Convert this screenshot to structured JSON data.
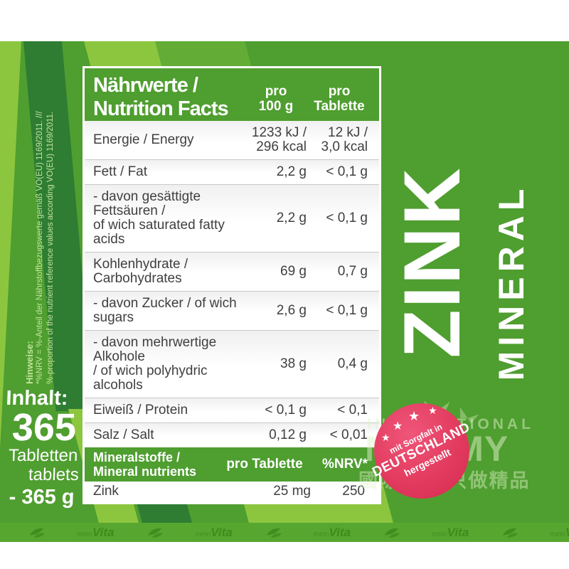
{
  "table": {
    "title": [
      "Nährwerte /",
      "Nutrition Facts"
    ],
    "col1_header": [
      "pro",
      "100 g"
    ],
    "col2_header": [
      "pro",
      "Tablette"
    ],
    "rows": [
      {
        "name": [
          "Energie / Energy"
        ],
        "per_100g": [
          "1233 kJ /",
          "296 kcal"
        ],
        "per_tablette": [
          "12 kJ /",
          "3,0 kcal"
        ]
      },
      {
        "name": [
          "Fett / Fat"
        ],
        "per_100g": [
          "2,2 g"
        ],
        "per_tablette": [
          "< 0,1 g"
        ]
      },
      {
        "name": [
          "- davon gesättigte Fettsäuren /",
          "of wich saturated fatty acids"
        ],
        "per_100g": [
          "2,2 g"
        ],
        "per_tablette": [
          "< 0,1 g"
        ]
      },
      {
        "name": [
          "Kohlenhydrate / Carbohydrates"
        ],
        "per_100g": [
          "69 g"
        ],
        "per_tablette": [
          "0,7 g"
        ]
      },
      {
        "name": [
          "- davon Zucker / of wich sugars"
        ],
        "per_100g": [
          "2,6 g"
        ],
        "per_tablette": [
          "< 0,1 g"
        ]
      },
      {
        "name": [
          "- davon mehrwertige Alkohole",
          "/ of wich polyhydric alcohols"
        ],
        "per_100g": [
          "38 g"
        ],
        "per_tablette": [
          "0,4 g"
        ]
      },
      {
        "name": [
          "Eiweiß / Protein"
        ],
        "per_100g": [
          "< 0,1 g"
        ],
        "per_tablette": [
          "< 0,1"
        ]
      },
      {
        "name": [
          "Salz / Salt"
        ],
        "per_100g": [
          "0,12 g"
        ],
        "per_tablette": [
          "< 0,01"
        ]
      }
    ],
    "minerals": {
      "header": [
        "Mineralstoffe /",
        "Mineral nutrients"
      ],
      "col1": "pro Tablette",
      "col2": "%NRV*",
      "rows": [
        {
          "name": "Zink",
          "per_tablette": "25 mg",
          "nrv": "250"
        }
      ]
    }
  },
  "side_note": {
    "heading": "Hinweise:",
    "line1": "*%NRV = %-Anteil der Nährstoffbezugswerte gemäß VO(EU) 1169/2011. ///",
    "line2": "%-proportion of the nutrient reference values according VO(EU) 1169/2011."
  },
  "content_info": {
    "label": "Inhalt:",
    "count": "365",
    "unit_de": "Tabletten",
    "unit_en": "tablets",
    "weight": "- 365 g"
  },
  "product": {
    "name": "ZINK",
    "category": "MINERAL"
  },
  "stamp": {
    "line1": "mit Sorgfalt in",
    "line2": "DEUTSCHLAND",
    "line3": "hergestellt",
    "stars": 4
  },
  "watermark": {
    "line1": "INTERNATIONAL",
    "line2": "MOMMY",
    "line3": "國際媽咪 只做精品"
  },
  "footer_brand": {
    "prefix": "mein",
    "name": "Vita",
    "repeat": 6
  },
  "colors": {
    "base_green": "#4f9e30",
    "light_green": "#8cc63f",
    "dark_green": "#2e7d33",
    "mid_green": "#63ad36",
    "strip_green": "#57a62f",
    "strip_text": "#3e8a1c",
    "stamp_pink": "#e23b5e",
    "table_text": "#3f3f3f"
  }
}
